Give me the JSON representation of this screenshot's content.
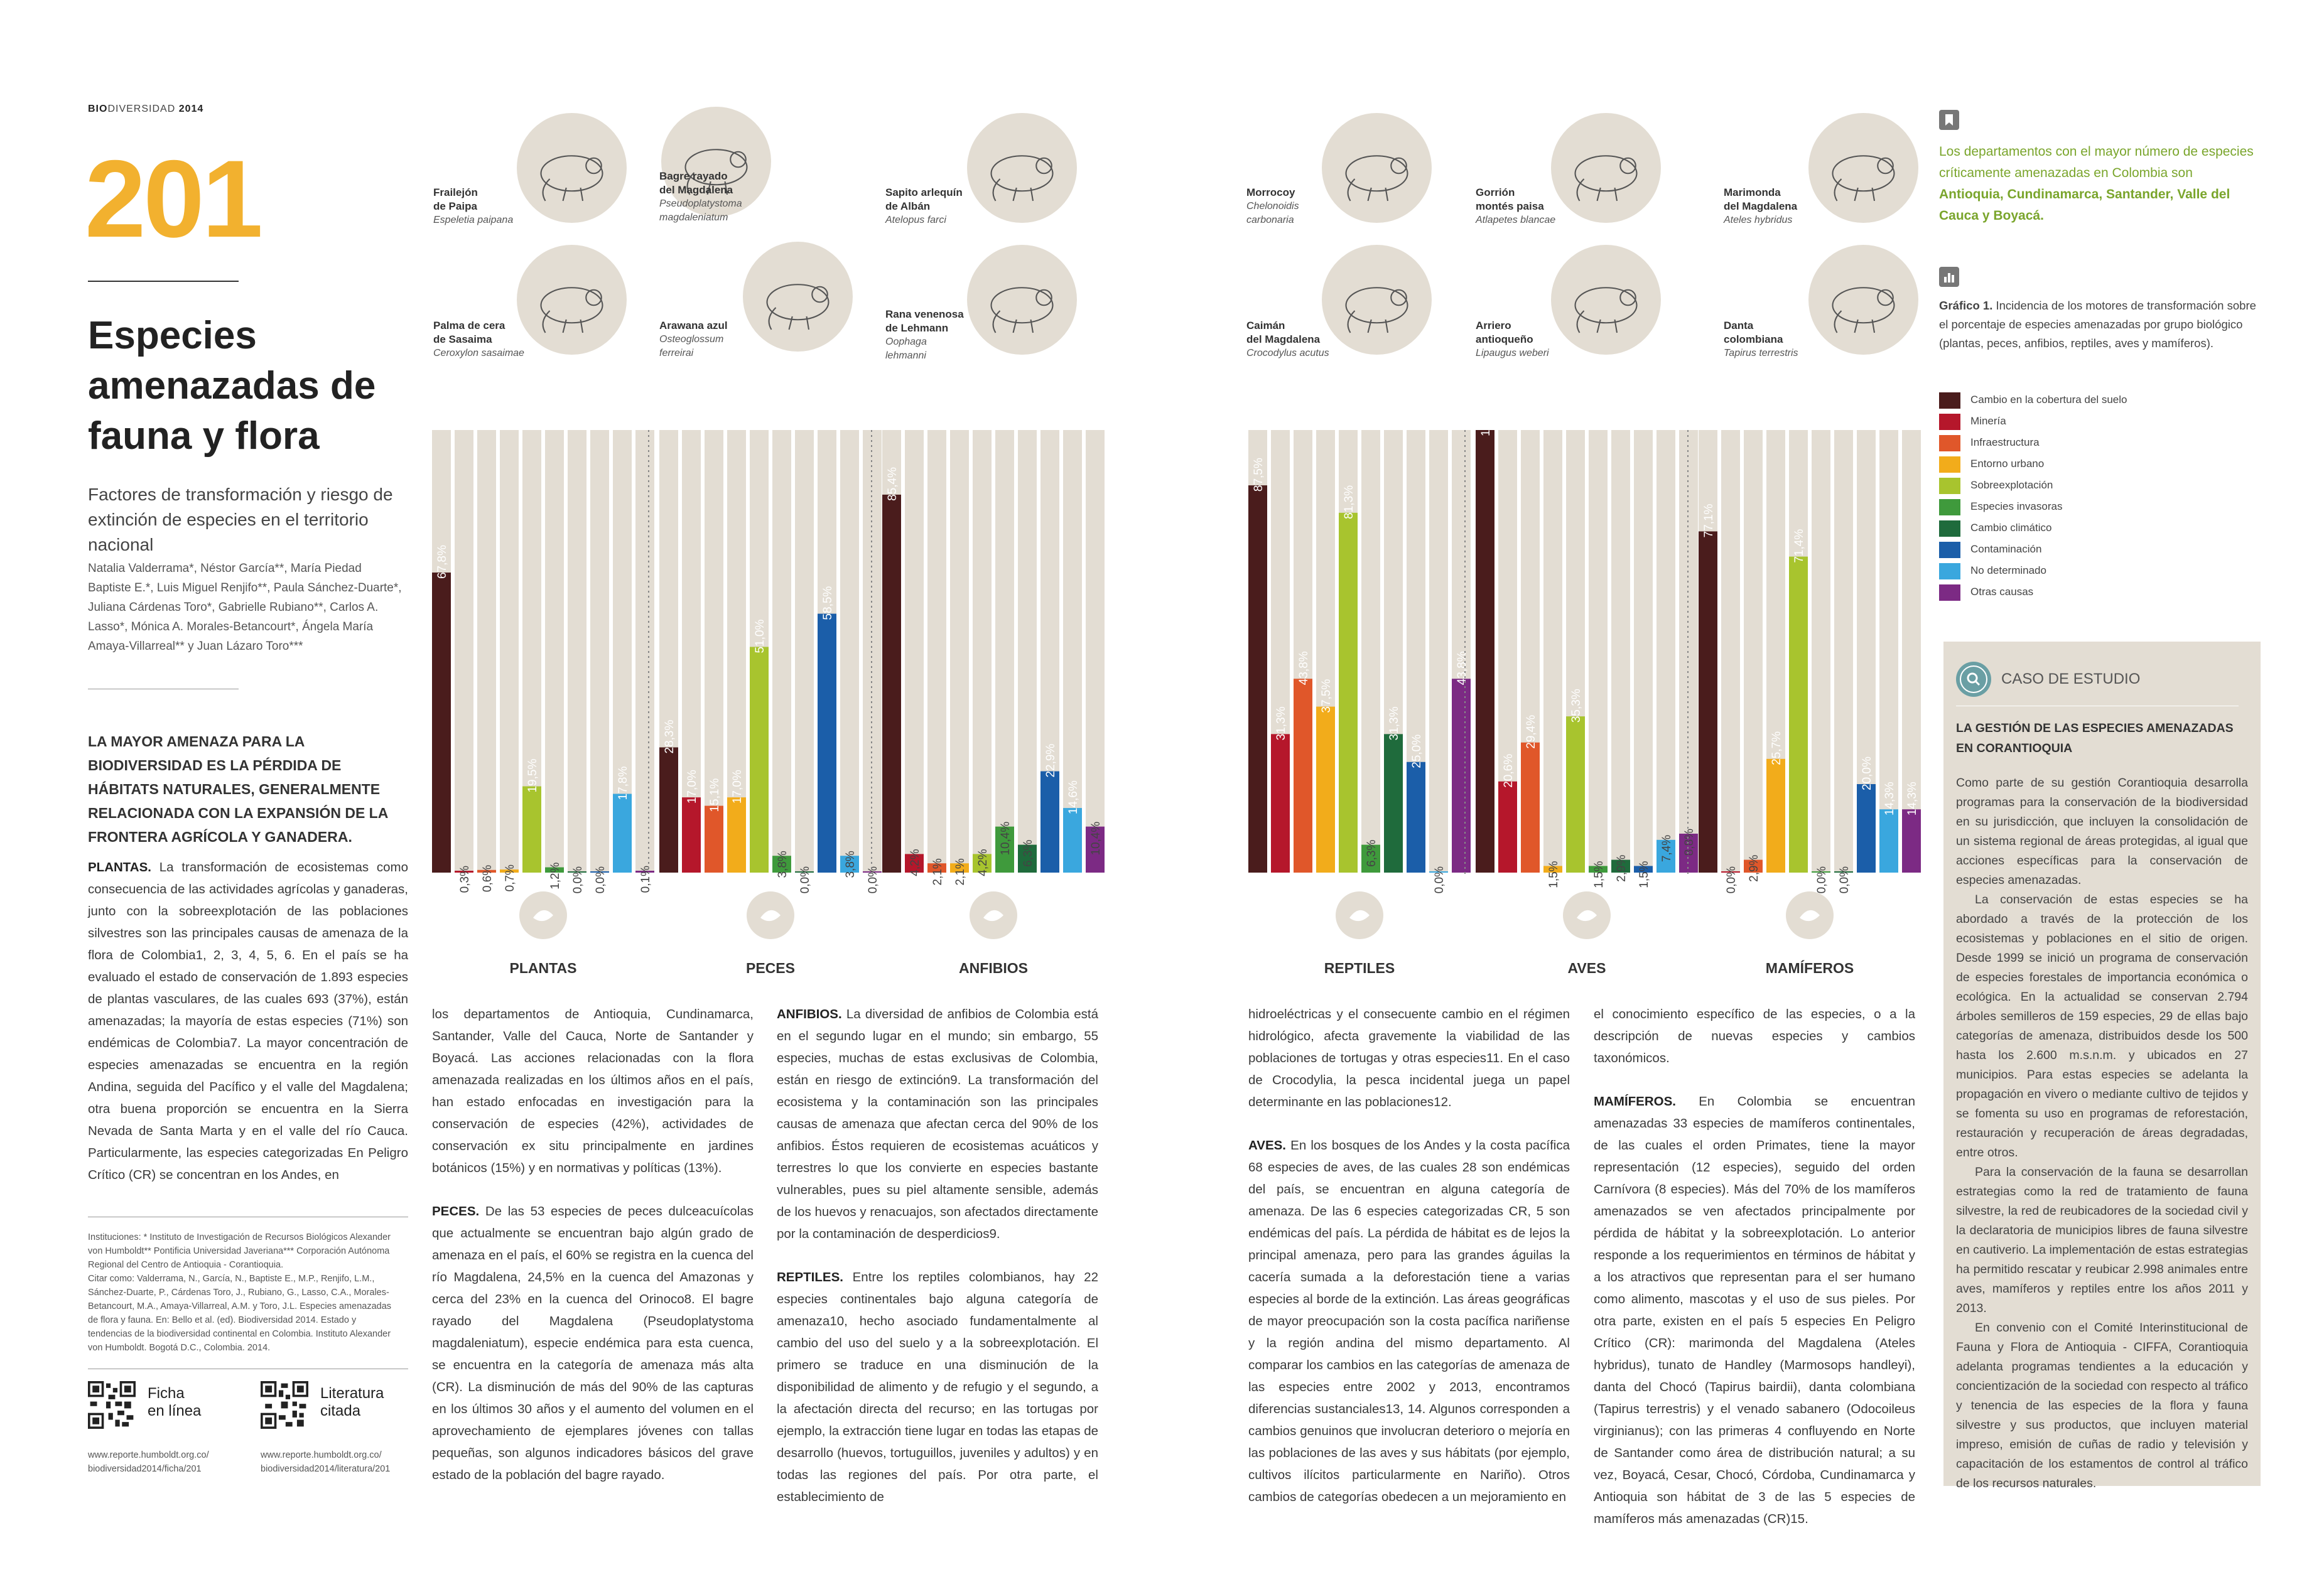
{
  "header": {
    "brand_bold": "BIO",
    "brand_rest": "DIVERSIDAD",
    "year": "2014"
  },
  "page_number": "201",
  "title": "Especies amenazadas de fauna y flora",
  "subtitle": "Factores de transformación y riesgo de extinción de especies en el territorio nacional",
  "authors": "Natalia Valderrama*, Néstor García**, María Piedad Baptiste E.*, Luis Miguel Renjifo**, Paula Sánchez-Duarte*, Juliana Cárdenas Toro*, Gabrielle Rubiano**, Carlos A. Lasso*, Mónica A. Morales-Betancourt*, Ángela María Amaya-Villarreal** y Juan Lázaro Toro***",
  "lead": "La mayor amenaza para la biodiversidad es la pérdida de hábitats naturales, generalmente relacionada con la expansión de la frontera agrícola y ganadera.",
  "paragraphs": {
    "plantas_head": "PLANTAS.",
    "plantas_1": "La transformación de ecosistemas como consecuencia de las actividades agrícolas y ganaderas, junto con la sobreexplotación de las poblaciones silvestres son las principales causas de amenaza de la flora de Colombia1, 2, 3, 4, 5, 6. En el país se ha evaluado el estado de conservación de 1.893 especies de plantas vasculares, de las cuales 693 (37%), están amenazadas; la mayoría de estas especies (71%) son endémicas de Colombia7. La mayor concentración de especies amenazadas se encuentra en la región Andina, seguida del Pacífico y el valle del Magdalena; otra buena proporción se encuentra en la Sierra Nevada de Santa Marta y en el valle del río Cauca. Particularmente, las especies categorizadas En Peligro Crítico (CR) se concentran en los Andes, en",
    "plantas_2": "los departamentos de Antioquia, Cundinamarca, Santander, Valle del Cauca, Norte de Santander y Boyacá. Las acciones relacionadas con la flora amenazada realizadas en los últimos años en el país, han estado enfocadas en investigación para la conservación de especies (42%), actividades de conservación ex situ principalmente en jardines botánicos (15%) y en normativas y políticas (13%).",
    "peces_head": "PECES.",
    "peces": "De las 53 especies de peces dulceacuícolas que actualmente se encuentran bajo algún grado de amenaza en el país, el 60% se registra en la cuenca del río Magdalena, 24,5% en la cuenca del Amazonas y cerca del 23% en la cuenca del Orinoco8. El bagre rayado del Magdalena (Pseudoplatystoma magdaleniatum), especie endémica para esta cuenca, se encuentra en la categoría de amenaza más alta (CR). La disminución de más del 90% de las capturas en los últimos 30 años y el aumento del volumen en el aprovechamiento de ejemplares jóvenes con tallas pequeñas, son algunos indicadores básicos del grave estado de la población del bagre rayado.",
    "anfibios_head": "ANFIBIOS.",
    "anfibios": "La diversidad de anfibios de Colombia está en el segundo lugar en el mundo; sin embargo, 55 especies, muchas de estas exclusivas de Colombia, están en riesgo de extinción9. La transformación del ecosistema y la contaminación son las principales causas de amenaza que afectan cerca del 90% de los anfibios. Éstos requieren de ecosistemas acuáticos y terrestres lo que los convierte en especies bastante vulnerables, pues su piel altamente sensible, además de los huevos y renacuajos, son afectados directamente por la contaminación de desperdicios9.",
    "reptiles_head": "REPTILES.",
    "reptiles_1": "Entre los reptiles colombianos, hay 22 especies continentales bajo alguna categoría de amenaza10, hecho asociado fundamentalmente al cambio del uso del suelo y a la sobreexplotación. El primero se traduce en una disminución de la disponibilidad de alimento y de refugio y el segundo, a la afectación directa del recurso; en las tortugas por ejemplo, la extracción tiene lugar en todas las etapas de desarrollo (huevos, tortuguillos, juveniles y adultos) y en todas las regiones del país. Por otra parte, el establecimiento de",
    "reptiles_2": "hidroeléctricas y el consecuente cambio en el régimen hidrológico, afecta gravemente la viabilidad de las poblaciones de tortugas y otras especies11. En el caso de Crocodylia, la pesca incidental juega un papel determinante en las poblaciones12.",
    "aves_head": "AVES.",
    "aves": "En los bosques de los Andes y la costa pacífica 68 especies de aves, de las cuales 28 son endémicas del país, se encuentran en alguna categoría de amenaza. De las 6 especies categorizadas CR, 5 son endémicas del país. La pérdida de hábitat es de lejos la principal amenaza, pero para las grandes águilas la cacería sumada a la deforestación tiene a varias especies al borde de la extinción. Las áreas geográficas de mayor preocupación son la costa pacífica nariñense y la región andina del mismo departamento. Al comparar los cambios en las categorías de amenaza de las especies entre 2002 y 2013, encontramos diferencias sustanciales13, 14. Algunos corresponden a cambios genuinos que involucran deterioro o mejoría en las poblaciones de las aves y sus hábitats (por ejemplo, cultivos ilícitos particularmente en Nariño). Otros cambios de categorías obedecen a un mejoramiento en",
    "aves_2": "el conocimiento específico de las especies, o a la descripción de nuevas especies y cambios taxonómicos.",
    "mamiferos_head": "MAMÍFEROS.",
    "mamiferos": "En Colombia se encuentran amenazadas 33 especies de mamíferos continentales, de las cuales el orden Primates, tiene la mayor representación (12 especies), seguido del orden Carnívora (8 especies). Más del 70% de los mamíferos amenazados se ven afectados principalmente por pérdida de hábitat y la sobreexplotación. Lo anterior responde a los requerimientos en términos de hábitat y a los atractivos que representan para el ser humano como alimento, mascotas y el uso de sus pieles. Por otra parte, existen en el país 5 especies En Peligro Crítico (CR): marimonda del Magdalena (Ateles hybridus), tunato de Handley (Marmosops handleyi), danta del Chocó (Tapirus bairdii), danta colombiana (Tapirus terrestris) y el venado sabanero (Odocoileus virginianus); con las primeras 4 confluyendo en Norte de Santander como área de distribución natural; a su vez, Boyacá, Cesar, Chocó, Córdoba, Cundinamarca y Antioquia son hábitat de 3 de las 5 especies de mamíferos más amenazadas (CR)15."
  },
  "institutions": "Instituciones: * Instituto de Investigación de Recursos Biológicos Alexander von Humboldt** Pontificia Universidad Javeriana*** Corporación Autónoma Regional del Centro de Antioquia - Corantioquia.",
  "citation": "Citar como: Valderrama, N., García, N., Baptiste E., M.P., Renjifo, L.M., Sánchez-Duarte, P., Cárdenas Toro, J., Rubiano, G., Lasso, C.A., Morales-Betancourt, M.A., Amaya-Villarreal, A.M. y Toro, J.L. Especies amenazadas de flora y fauna. En: Bello et al. (ed). Biodiversidad 2014. Estado y tendencias de la biodiversidad continental en Colombia. Instituto Alexander von Humboldt. Bogotá D.C., Colombia. 2014.",
  "qr": [
    {
      "label1": "Ficha",
      "label2": "en línea",
      "url1": "www.reporte.humboldt.org.co/",
      "url2": "biodiversidad2014/ficha/201"
    },
    {
      "label1": "Literatura",
      "label2": "citada",
      "url1": "www.reporte.humboldt.org.co/",
      "url2": "biodiversidad2014/literatura/201"
    }
  ],
  "species": [
    {
      "name1": "Frailejón",
      "name2": "de Paipa",
      "sci1": "Espeletia paipana",
      "sci2": ""
    },
    {
      "name1": "Bagre rayado",
      "name2": "del Magdalena",
      "sci1": "Pseudoplatystoma",
      "sci2": "magdaleniatum"
    },
    {
      "name1": "Sapito arlequín",
      "name2": "de Albán",
      "sci1": "Atelopus farci",
      "sci2": ""
    },
    {
      "name1": "Palma de cera",
      "name2": "de Sasaima",
      "sci1": "Ceroxylon sasaimae",
      "sci2": ""
    },
    {
      "name1": "Arawana azul",
      "name2": "",
      "sci1": "Osteoglossum",
      "sci2": "ferreirai"
    },
    {
      "name1": "Rana venenosa",
      "name2": "de Lehmann",
      "sci1": "Oophaga",
      "sci2": "lehmanni"
    },
    {
      "name1": "Morrocoy",
      "name2": "",
      "sci1": "Chelonoidis",
      "sci2": "carbonaria"
    },
    {
      "name1": "Gorrión",
      "name2": "montés paisa",
      "sci1": "Atlapetes blancae",
      "sci2": ""
    },
    {
      "name1": "Marimonda",
      "name2": "del Magdalena",
      "sci1": "Ateles hybridus",
      "sci2": ""
    },
    {
      "name1": "Caimán",
      "name2": "del Magdalena",
      "sci1": "Crocodylus acutus",
      "sci2": ""
    },
    {
      "name1": "Arriero",
      "name2": "antioqueño",
      "sci1": "Lipaugus weberi",
      "sci2": ""
    },
    {
      "name1": "Danta",
      "name2": "colombiana",
      "sci1": "Tapirus terrestris",
      "sci2": ""
    }
  ],
  "side_note": {
    "text": "Los departamentos con el mayor número de especies críticamente amenazadas en Colombia son ",
    "bold": "Antioquia, Cundinamarca, Santander, Valle del Cauca y Boyacá."
  },
  "graph_caption": {
    "bold": "Gráfico 1.",
    "text": " Incidencia de los motores de transformación sobre el porcentaje de especies amenazadas por grupo biológico (plantas, peces, anfibios, reptiles, aves y mamíferos)."
  },
  "legend": [
    {
      "label": "Cambio en la cobertura del suelo",
      "color": "#4a1c1c"
    },
    {
      "label": "Minería",
      "color": "#b5172b"
    },
    {
      "label": "Infraestructura",
      "color": "#e0572a"
    },
    {
      "label": "Entorno urbano",
      "color": "#f2ac1b"
    },
    {
      "label": "Sobreexplotación",
      "color": "#a8c42e"
    },
    {
      "label": "Especies invasoras",
      "color": "#3f9a3c"
    },
    {
      "label": "Cambio climático",
      "color": "#1f6b3c"
    },
    {
      "label": "Contaminación",
      "color": "#1b5ea9"
    },
    {
      "label": "No determinado",
      "color": "#3aa7de"
    },
    {
      "label": "Otras causas",
      "color": "#7c2a84"
    }
  ],
  "case_study": {
    "label": "CASO DE ESTUDIO",
    "title": "LA GESTIÓN DE LAS ESPECIES AMENAZADAS EN CORANTIOQUIA",
    "p1": "Como parte de su gestión Corantioquia desarrolla programas para la conservación de la biodiversidad en su jurisdicción, que incluyen la consolidación de un sistema regional de áreas protegidas, al igual que acciones específicas para la conservación de especies amenazadas.",
    "p2": "La conservación de estas especies se ha abordado a través de la protección de los ecosistemas y poblaciones en el sitio de origen. Desde 1999 se inició un programa de conservación de especies forestales de importancia económica o ecológica. En la actualidad se conservan 2.794 árboles semilleros de 159 especies, 29 de ellas bajo categorías de amenaza, distribuidos desde los 500 hasta los 2.600 m.s.n.m. y ubicados en 27 municipios. Para estas especies se adelanta la propagación en vivero o mediante cultivo de tejidos y se fomenta su uso en programas de reforestación, restauración y recuperación de áreas degradadas, entre otros.",
    "p3": "Para la conservación de la fauna se desarrollan estrategias como la red de tratamiento de fauna silvestre, la red de reubicadores de la sociedad civil y la declaratoria de municipios libres de fauna silvestre en cautiverio. La implementación de estas estrategias ha permitido rescatar y reubicar 2.998 animales entre aves, mamíferos y reptiles entre los años 2011 y 2013.",
    "p4": "En convenio con el Comité Interinstitucional de Fauna y Flora de Antioquia - CIFFA, Corantioquia adelanta programas tendientes a la educación y concientización de la sociedad con respecto al tráfico y tenencia de las especies de la flora y fauna silvestre y sus productos, que incluyen material impreso, emisión de cuñas de radio y televisión y capacitación de los estamentos de control al tráfico de los recursos naturales."
  },
  "chart_data": {
    "type": "bar",
    "ylim": [
      0,
      100
    ],
    "categories": [
      "Cambio en la cobertura del suelo",
      "Minería",
      "Infraestructura",
      "Entorno urbano",
      "Sobreexplotación",
      "Especies invasoras",
      "Cambio climático",
      "Contaminación",
      "No determinado",
      "Otras causas"
    ],
    "colors": [
      "#4a1c1c",
      "#b5172b",
      "#e0572a",
      "#f2ac1b",
      "#a8c42e",
      "#3f9a3c",
      "#1f6b3c",
      "#1b5ea9",
      "#3aa7de",
      "#7c2a84"
    ],
    "groups": [
      {
        "name": "PLANTAS",
        "values": [
          67.8,
          0.3,
          0.6,
          0.7,
          19.5,
          1.2,
          0.0,
          0.0,
          17.8,
          0.1
        ],
        "labels": [
          "67,8%",
          "0,3%",
          "0,6%",
          "0,7%",
          "19,5%",
          "1,2%",
          "0,0%",
          "0,0%",
          "17,8%",
          "0,1%"
        ]
      },
      {
        "name": "PECES",
        "values": [
          28.3,
          17.0,
          15.1,
          17.0,
          51.0,
          3.8,
          0.0,
          58.5,
          3.8,
          0.0
        ],
        "labels": [
          "28,3%",
          "17,0%",
          "15,1%",
          "17,0%",
          "51,0%",
          "3,8%",
          "0,0%",
          "58,5%",
          "3,8%",
          "0,0%"
        ]
      },
      {
        "name": "ANFIBIOS",
        "values": [
          85.4,
          4.2,
          2.1,
          2.1,
          4.2,
          10.4,
          6.3,
          22.9,
          14.6,
          10.4
        ],
        "labels": [
          "85,4%",
          "4,2%",
          "2,1%",
          "2,1%",
          "4,2%",
          "10,4%",
          "6,3%",
          "22,9%",
          "14,6%",
          "10,4%"
        ]
      },
      {
        "name": "REPTILES",
        "values": [
          87.5,
          31.3,
          43.8,
          37.5,
          81.3,
          6.3,
          31.3,
          25.0,
          0.0,
          43.8
        ],
        "labels": [
          "87,5%",
          "31,3%",
          "43,8%",
          "37,5%",
          "81,3%",
          "6,3%",
          "31,3%",
          "25,0%",
          "0,0%",
          "43,8%"
        ]
      },
      {
        "name": "AVES",
        "values": [
          100.0,
          20.6,
          29.4,
          1.5,
          35.3,
          1.5,
          2.9,
          1.5,
          7.4,
          8.8
        ],
        "labels": [
          "100,0%",
          "20,6%",
          "29,4%",
          "1,5%",
          "35,3%",
          "1,5%",
          "2,9%",
          "1,5%",
          "7,4%",
          "8,8%"
        ]
      },
      {
        "name": "MAMÍFEROS",
        "values": [
          77.1,
          0.0,
          2.9,
          25.7,
          71.4,
          0.0,
          0.0,
          20.0,
          14.3,
          14.3
        ],
        "labels": [
          "77,1%",
          "0,0%",
          "2,9%",
          "25,7%",
          "71,4%",
          "0,0%",
          "0,0%",
          "20,0%",
          "14,3%",
          "14,3%"
        ]
      }
    ]
  }
}
